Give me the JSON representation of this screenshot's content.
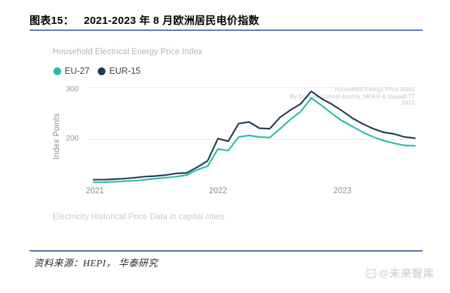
{
  "figure": {
    "label": "图表15：",
    "title": "2021-2023 年 8 月欧洲居民电价指数"
  },
  "chart": {
    "header": "Household Electrical Energy Price Index",
    "legend": [
      {
        "label": "EU-27",
        "color": "#26bca9"
      },
      {
        "label": "EUR-15",
        "color": "#1f3a54"
      }
    ],
    "y_axis_label": "Index Points",
    "y_ticks": [
      "300",
      "200"
    ],
    "x_ticks": [
      "2021",
      "2022",
      "2023"
    ],
    "annotation_line1": "Household Energy Price Index",
    "annotation_line2": "By Energie-Control Austria, MEKH & VaasaETT",
    "annotation_line3": "2023",
    "footnote": "Electricity Historical Price Data in capital cities"
  },
  "chart_data": {
    "type": "line",
    "title": "Household Electrical Energy Price Index",
    "xlabel": "",
    "ylabel": "Index Points",
    "ylim": [
      100,
      310
    ],
    "yticks": [
      200,
      300
    ],
    "xticks_shown": [
      "2021",
      "2022",
      "2023"
    ],
    "grid": "horizontal-only",
    "legend_position": "top-left",
    "x": [
      "2021-01",
      "2021-02",
      "2021-03",
      "2021-04",
      "2021-05",
      "2021-06",
      "2021-07",
      "2021-08",
      "2021-09",
      "2021-10",
      "2021-11",
      "2021-12",
      "2022-01",
      "2022-02",
      "2022-03",
      "2022-04",
      "2022-05",
      "2022-06",
      "2022-07",
      "2022-08",
      "2022-09",
      "2022-10",
      "2022-11",
      "2022-12",
      "2023-01",
      "2023-02",
      "2023-03",
      "2023-04",
      "2023-05",
      "2023-06",
      "2023-07",
      "2023-08"
    ],
    "series": [
      {
        "name": "EU-27",
        "color": "#26bca9",
        "values": [
          117,
          117,
          118,
          119,
          120,
          122,
          124,
          126,
          128,
          131,
          141,
          148,
          181,
          178,
          204,
          207,
          204,
          203,
          220,
          238,
          253,
          279,
          265,
          249,
          235,
          224,
          213,
          204,
          197,
          192,
          188,
          187
        ]
      },
      {
        "name": "EUR-15",
        "color": "#1f3a54",
        "values": [
          122,
          122,
          123,
          124,
          126,
          128,
          129,
          131,
          134,
          135,
          146,
          158,
          201,
          196,
          230,
          233,
          221,
          220,
          242,
          256,
          268,
          292,
          278,
          267,
          254,
          240,
          229,
          220,
          213,
          210,
          204,
          202
        ]
      }
    ]
  },
  "source": {
    "text": "资料来源：HEPI， 华泰研究"
  },
  "watermark": {
    "text": "@未来智库"
  }
}
